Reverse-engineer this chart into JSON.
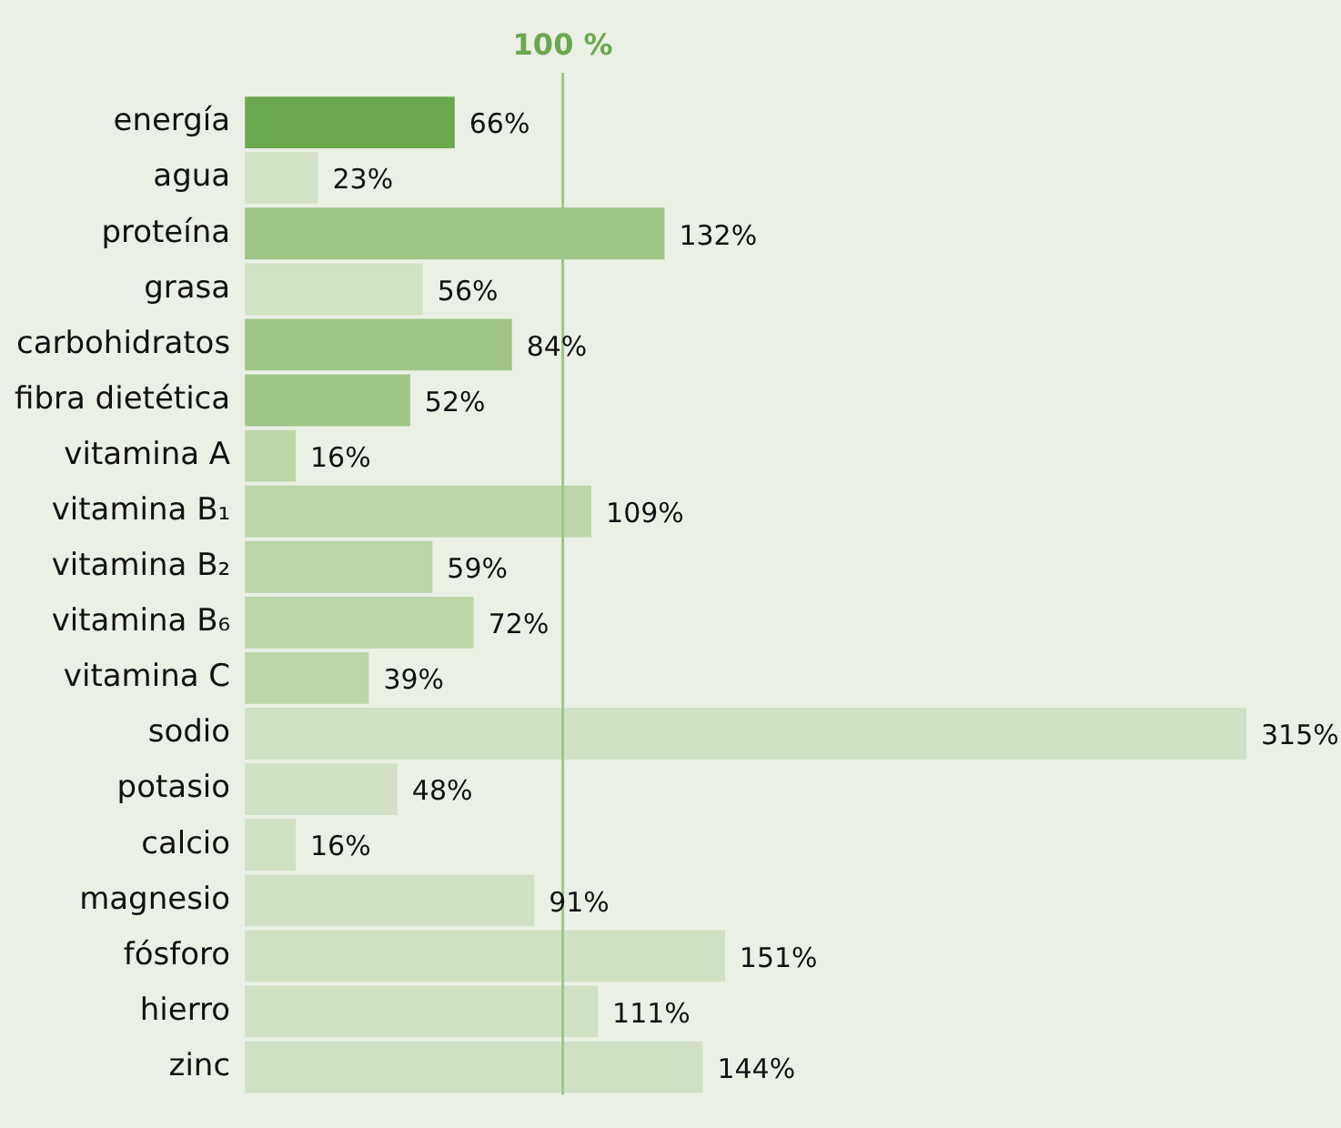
{
  "chart_data": {
    "type": "bar",
    "orientation": "horizontal",
    "categories": [
      "energía",
      "agua",
      "proteína",
      "grasa",
      "carbohidratos",
      "fibra dietética",
      "vitamina A",
      "vitamina B₁",
      "vitamina B₂",
      "vitamina B₆",
      "vitamina C",
      "sodio",
      "potasio",
      "calcio",
      "magnesio",
      "fósforo",
      "hierro",
      "zinc"
    ],
    "values": [
      66,
      23,
      132,
      56,
      84,
      52,
      16,
      109,
      59,
      72,
      39,
      315,
      48,
      16,
      91,
      151,
      111,
      144
    ],
    "value_labels": [
      "66%",
      "23%",
      "132%",
      "56%",
      "84%",
      "52%",
      "16%",
      "109%",
      "59%",
      "72%",
      "39%",
      "315%",
      "48%",
      "16%",
      "91%",
      "151%",
      "111%",
      "144%"
    ],
    "colors": [
      "#6aa84f",
      "#d3e3c5",
      "#9fc587",
      "#d3e3c5",
      "#9fc587",
      "#9fc587",
      "#bcd6a8",
      "#bcd6a8",
      "#bcd6a8",
      "#bcd6a8",
      "#bcd6a8",
      "#d0e1c4",
      "#d0e1c4",
      "#d0e1c4",
      "#d0e1c4",
      "#d0e1c4",
      "#d0e1c4",
      "#d0e1c4"
    ],
    "xlim": [
      0,
      315
    ],
    "tick_labels": "y",
    "legend": false,
    "ref_lines": [
      {
        "axis": "x",
        "value": 100,
        "label": "100 %",
        "color": "#9fc587"
      }
    ]
  }
}
